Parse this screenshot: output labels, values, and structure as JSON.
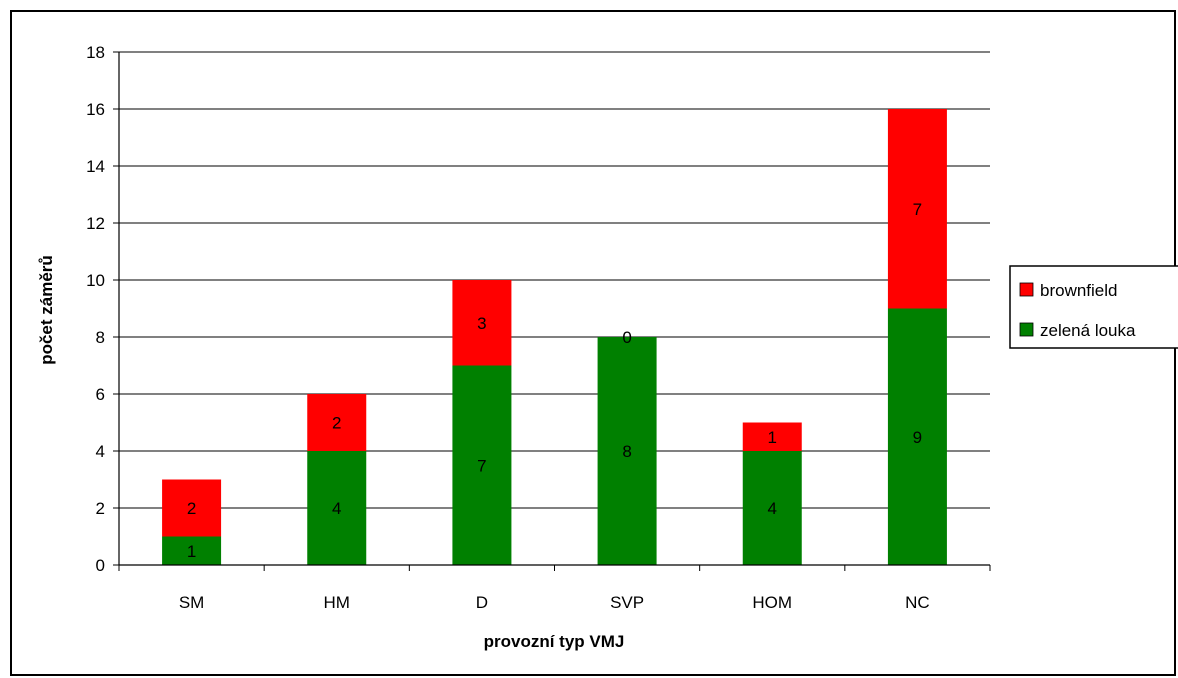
{
  "chart_data": {
    "type": "bar",
    "stacked": true,
    "title": "",
    "xlabel": "provozní typ VMJ",
    "ylabel": "počet záměrů",
    "categories": [
      "SM",
      "HM",
      "D",
      "SVP",
      "HOM",
      "NC"
    ],
    "series": [
      {
        "name": "zelená louka",
        "values": [
          1,
          4,
          7,
          8,
          4,
          9
        ],
        "color": "#008000"
      },
      {
        "name": "brownfield",
        "values": [
          2,
          2,
          3,
          0,
          1,
          7
        ],
        "color": "#ff0000"
      }
    ],
    "ylim": [
      0,
      18
    ],
    "yticks": [
      0,
      2,
      4,
      6,
      8,
      10,
      12,
      14,
      16,
      18
    ],
    "grid": true,
    "legend_position": "right",
    "legend_order": [
      "brownfield",
      "zelená louka"
    ],
    "data_labels": true
  }
}
